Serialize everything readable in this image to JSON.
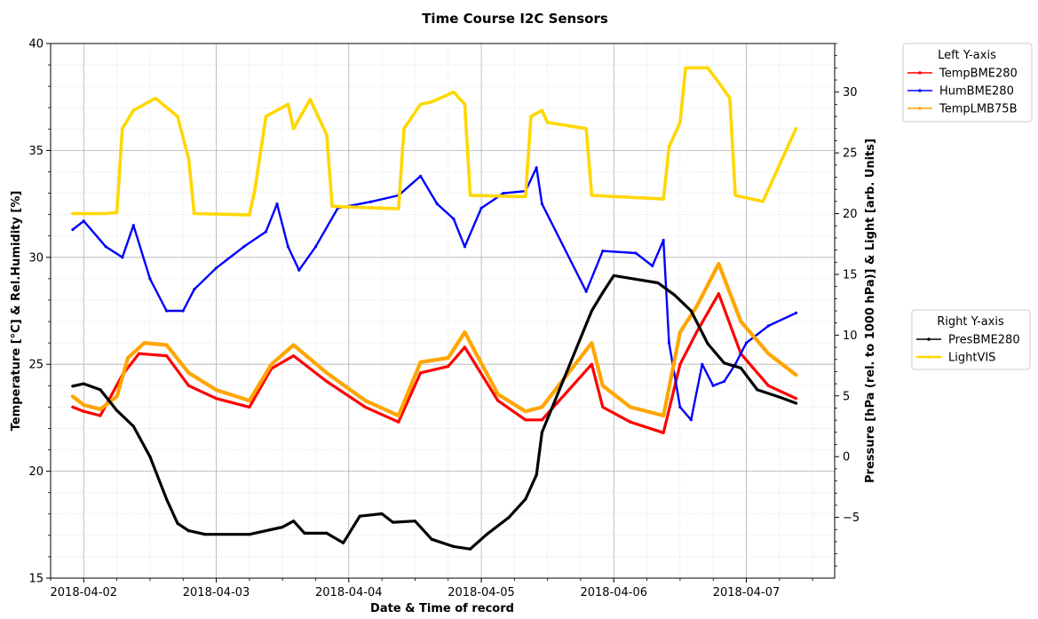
{
  "chart_data": {
    "type": "line",
    "title": "Time Course I2C Sensors",
    "xlabel": "Date & Time of record",
    "ylabel_left": "Temperature [°C] & Rel.Humidity [%]",
    "ylabel_right": "Pressure [hPa (rel. to 1000 hPa)] & Light [arb. Units]",
    "x_ticks": [
      "2018-04-02",
      "2018-04-03",
      "2018-04-04",
      "2018-04-05",
      "2018-04-06",
      "2018-04-07"
    ],
    "xlim": [
      "2018-04-01 18:00",
      "2018-04-07 16:00"
    ],
    "ylim_left": [
      15,
      40
    ],
    "left_ticks": [
      15,
      20,
      25,
      30,
      35,
      40
    ],
    "ylim_right": [
      -10,
      34
    ],
    "right_ticks": [
      -5,
      0,
      5,
      10,
      15,
      20,
      25,
      30
    ],
    "grid": true,
    "legend_left": {
      "title": "Left Y-axis",
      "placement": "top-right outside",
      "entries": [
        "TempBME280",
        "HumBME280",
        "TempLMB75B"
      ]
    },
    "legend_right": {
      "title": "Right Y-axis",
      "placement": "middle-right outside",
      "entries": [
        "PresBME280",
        "LightVIS"
      ]
    },
    "series": [
      {
        "name": "TempBME280",
        "axis": "left",
        "color": "#ff0000",
        "points": [
          [
            "2018-04-01 22:00",
            23.0
          ],
          [
            "2018-04-02 00:00",
            22.8
          ],
          [
            "2018-04-02 03:00",
            22.6
          ],
          [
            "2018-04-02 07:00",
            24.5
          ],
          [
            "2018-04-02 10:00",
            25.5
          ],
          [
            "2018-04-02 15:00",
            25.4
          ],
          [
            "2018-04-02 19:00",
            24.0
          ],
          [
            "2018-04-03 00:00",
            23.4
          ],
          [
            "2018-04-03 06:00",
            23.0
          ],
          [
            "2018-04-03 10:00",
            24.8
          ],
          [
            "2018-04-03 14:00",
            25.4
          ],
          [
            "2018-04-03 20:00",
            24.2
          ],
          [
            "2018-04-04 03:00",
            23.0
          ],
          [
            "2018-04-04 09:00",
            22.3
          ],
          [
            "2018-04-04 13:00",
            24.6
          ],
          [
            "2018-04-04 18:00",
            24.9
          ],
          [
            "2018-04-04 21:00",
            25.8
          ],
          [
            "2018-04-05 03:00",
            23.3
          ],
          [
            "2018-04-05 08:00",
            22.4
          ],
          [
            "2018-04-05 11:00",
            22.4
          ],
          [
            "2018-04-05 20:00",
            25.0
          ],
          [
            "2018-04-05 22:00",
            23.0
          ],
          [
            "2018-04-06 03:00",
            22.3
          ],
          [
            "2018-04-06 09:00",
            21.8
          ],
          [
            "2018-04-06 12:00",
            25.0
          ],
          [
            "2018-04-06 15:00",
            26.5
          ],
          [
            "2018-04-06 19:00",
            28.3
          ],
          [
            "2018-04-06 23:00",
            25.5
          ],
          [
            "2018-04-07 04:00",
            24.0
          ],
          [
            "2018-04-07 09:00",
            23.4
          ]
        ]
      },
      {
        "name": "HumBME280",
        "axis": "left",
        "color": "#0000ff",
        "points": [
          [
            "2018-04-01 22:00",
            31.3
          ],
          [
            "2018-04-02 00:00",
            31.7
          ],
          [
            "2018-04-02 04:00",
            30.5
          ],
          [
            "2018-04-02 07:00",
            30.0
          ],
          [
            "2018-04-02 09:00",
            31.5
          ],
          [
            "2018-04-02 12:00",
            29.0
          ],
          [
            "2018-04-02 15:00",
            27.5
          ],
          [
            "2018-04-02 18:00",
            27.5
          ],
          [
            "2018-04-02 20:00",
            28.5
          ],
          [
            "2018-04-03 00:00",
            29.5
          ],
          [
            "2018-04-03 05:00",
            30.5
          ],
          [
            "2018-04-03 09:00",
            31.2
          ],
          [
            "2018-04-03 11:00",
            32.5
          ],
          [
            "2018-04-03 13:00",
            30.5
          ],
          [
            "2018-04-03 15:00",
            29.4
          ],
          [
            "2018-04-03 18:00",
            30.5
          ],
          [
            "2018-04-03 22:00",
            32.3
          ],
          [
            "2018-04-04 04:00",
            32.6
          ],
          [
            "2018-04-04 09:00",
            32.9
          ],
          [
            "2018-04-04 13:00",
            33.8
          ],
          [
            "2018-04-04 16:00",
            32.5
          ],
          [
            "2018-04-04 19:00",
            31.8
          ],
          [
            "2018-04-04 21:00",
            30.5
          ],
          [
            "2018-04-05 00:00",
            32.3
          ],
          [
            "2018-04-05 04:00",
            33.0
          ],
          [
            "2018-04-05 08:00",
            33.1
          ],
          [
            "2018-04-05 10:00",
            34.2
          ],
          [
            "2018-04-05 11:00",
            32.5
          ],
          [
            "2018-04-05 19:00",
            28.4
          ],
          [
            "2018-04-05 22:00",
            30.3
          ],
          [
            "2018-04-06 04:00",
            30.2
          ],
          [
            "2018-04-06 07:00",
            29.6
          ],
          [
            "2018-04-06 09:00",
            30.8
          ],
          [
            "2018-04-06 10:00",
            26.0
          ],
          [
            "2018-04-06 12:00",
            23.0
          ],
          [
            "2018-04-06 14:00",
            22.4
          ],
          [
            "2018-04-06 16:00",
            25.0
          ],
          [
            "2018-04-06 18:00",
            24.0
          ],
          [
            "2018-04-06 20:00",
            24.2
          ],
          [
            "2018-04-06 22:00",
            25.0
          ],
          [
            "2018-04-07 00:00",
            26.0
          ],
          [
            "2018-04-07 04:00",
            26.8
          ],
          [
            "2018-04-07 09:00",
            27.4
          ]
        ]
      },
      {
        "name": "TempLMB75B",
        "axis": "left",
        "color": "#ffa500",
        "points": [
          [
            "2018-04-01 22:00",
            23.5
          ],
          [
            "2018-04-02 00:00",
            23.1
          ],
          [
            "2018-04-02 03:00",
            22.9
          ],
          [
            "2018-04-02 06:00",
            23.5
          ],
          [
            "2018-04-02 08:00",
            25.3
          ],
          [
            "2018-04-02 11:00",
            26.0
          ],
          [
            "2018-04-02 15:00",
            25.9
          ],
          [
            "2018-04-02 19:00",
            24.6
          ],
          [
            "2018-04-03 00:00",
            23.8
          ],
          [
            "2018-04-03 06:00",
            23.3
          ],
          [
            "2018-04-03 10:00",
            25.0
          ],
          [
            "2018-04-03 14:00",
            25.9
          ],
          [
            "2018-04-03 20:00",
            24.6
          ],
          [
            "2018-04-04 03:00",
            23.3
          ],
          [
            "2018-04-04 09:00",
            22.6
          ],
          [
            "2018-04-04 13:00",
            25.1
          ],
          [
            "2018-04-04 18:00",
            25.3
          ],
          [
            "2018-04-04 21:00",
            26.5
          ],
          [
            "2018-04-05 03:00",
            23.6
          ],
          [
            "2018-04-05 08:00",
            22.8
          ],
          [
            "2018-04-05 11:00",
            23.0
          ],
          [
            "2018-04-05 20:00",
            26.0
          ],
          [
            "2018-04-05 22:00",
            24.0
          ],
          [
            "2018-04-06 03:00",
            23.0
          ],
          [
            "2018-04-06 09:00",
            22.6
          ],
          [
            "2018-04-06 12:00",
            26.5
          ],
          [
            "2018-04-06 15:00",
            27.7
          ],
          [
            "2018-04-06 19:00",
            29.7
          ],
          [
            "2018-04-06 23:00",
            27.0
          ],
          [
            "2018-04-07 04:00",
            25.5
          ],
          [
            "2018-04-07 09:00",
            24.5
          ]
        ]
      },
      {
        "name": "PresBME280",
        "axis": "right",
        "color": "#000000",
        "points": [
          [
            "2018-04-01 22:00",
            5.8
          ],
          [
            "2018-04-02 00:00",
            6.0
          ],
          [
            "2018-04-02 03:00",
            5.5
          ],
          [
            "2018-04-02 06:00",
            3.8
          ],
          [
            "2018-04-02 09:00",
            2.5
          ],
          [
            "2018-04-02 12:00",
            0.0
          ],
          [
            "2018-04-02 15:00",
            -3.5
          ],
          [
            "2018-04-02 17:00",
            -5.5
          ],
          [
            "2018-04-02 19:00",
            -6.1
          ],
          [
            "2018-04-02 22:00",
            -6.4
          ],
          [
            "2018-04-03 06:00",
            -6.4
          ],
          [
            "2018-04-03 12:00",
            -5.8
          ],
          [
            "2018-04-03 14:00",
            -5.3
          ],
          [
            "2018-04-03 16:00",
            -6.3
          ],
          [
            "2018-04-03 20:00",
            -6.3
          ],
          [
            "2018-04-03 23:00",
            -7.1
          ],
          [
            "2018-04-04 02:00",
            -4.9
          ],
          [
            "2018-04-04 06:00",
            -4.7
          ],
          [
            "2018-04-04 08:00",
            -5.4
          ],
          [
            "2018-04-04 12:00",
            -5.3
          ],
          [
            "2018-04-04 15:00",
            -6.8
          ],
          [
            "2018-04-04 19:00",
            -7.4
          ],
          [
            "2018-04-04 22:00",
            -7.6
          ],
          [
            "2018-04-05 01:00",
            -6.4
          ],
          [
            "2018-04-05 05:00",
            -5.0
          ],
          [
            "2018-04-05 08:00",
            -3.5
          ],
          [
            "2018-04-05 10:00",
            -1.5
          ],
          [
            "2018-04-05 11:00",
            2.0
          ],
          [
            "2018-04-05 20:00",
            12.0
          ],
          [
            "2018-04-05 22:00",
            13.5
          ],
          [
            "2018-04-06 00:00",
            14.9
          ],
          [
            "2018-04-06 04:00",
            14.6
          ],
          [
            "2018-04-06 08:00",
            14.3
          ],
          [
            "2018-04-06 11:00",
            13.3
          ],
          [
            "2018-04-06 14:00",
            12.0
          ],
          [
            "2018-04-06 17:00",
            9.3
          ],
          [
            "2018-04-06 20:00",
            7.7
          ],
          [
            "2018-04-06 23:00",
            7.3
          ],
          [
            "2018-04-07 02:00",
            5.5
          ],
          [
            "2018-04-07 06:00",
            4.9
          ],
          [
            "2018-04-07 09:00",
            4.4
          ]
        ]
      },
      {
        "name": "LightVIS",
        "axis": "right",
        "color": "#ffd700",
        "points": [
          [
            "2018-04-01 22:00",
            20.0
          ],
          [
            "2018-04-02 04:00",
            20.0
          ],
          [
            "2018-04-02 06:00",
            20.1
          ],
          [
            "2018-04-02 07:00",
            27.0
          ],
          [
            "2018-04-02 09:00",
            28.5
          ],
          [
            "2018-04-02 13:00",
            29.5
          ],
          [
            "2018-04-02 17:00",
            28.0
          ],
          [
            "2018-04-02 19:00",
            24.5
          ],
          [
            "2018-04-02 20:00",
            20.0
          ],
          [
            "2018-04-03 06:00",
            19.9
          ],
          [
            "2018-04-03 07:00",
            22.0
          ],
          [
            "2018-04-03 09:00",
            28.0
          ],
          [
            "2018-04-03 13:00",
            29.0
          ],
          [
            "2018-04-03 14:00",
            27.0
          ],
          [
            "2018-04-03 17:00",
            29.4
          ],
          [
            "2018-04-03 20:00",
            26.5
          ],
          [
            "2018-04-03 21:00",
            20.6
          ],
          [
            "2018-04-04 09:00",
            20.4
          ],
          [
            "2018-04-04 10:00",
            27.0
          ],
          [
            "2018-04-04 13:00",
            29.0
          ],
          [
            "2018-04-04 15:00",
            29.2
          ],
          [
            "2018-04-04 19:00",
            30.0
          ],
          [
            "2018-04-04 21:00",
            29.0
          ],
          [
            "2018-04-04 22:00",
            21.5
          ],
          [
            "2018-04-05 08:00",
            21.4
          ],
          [
            "2018-04-05 09:00",
            28.0
          ],
          [
            "2018-04-05 11:00",
            28.5
          ],
          [
            "2018-04-05 12:00",
            27.5
          ],
          [
            "2018-04-05 19:00",
            27.0
          ],
          [
            "2018-04-05 20:00",
            21.5
          ],
          [
            "2018-04-06 09:00",
            21.2
          ],
          [
            "2018-04-06 10:00",
            25.5
          ],
          [
            "2018-04-06 12:00",
            27.5
          ],
          [
            "2018-04-06 13:00",
            32.0
          ],
          [
            "2018-04-06 17:00",
            32.0
          ],
          [
            "2018-04-06 19:00",
            30.8
          ],
          [
            "2018-04-06 21:00",
            29.5
          ],
          [
            "2018-04-06 22:00",
            21.5
          ],
          [
            "2018-04-07 03:00",
            21.0
          ],
          [
            "2018-04-07 07:00",
            25.0
          ],
          [
            "2018-04-07 09:00",
            27.0
          ]
        ]
      }
    ]
  }
}
